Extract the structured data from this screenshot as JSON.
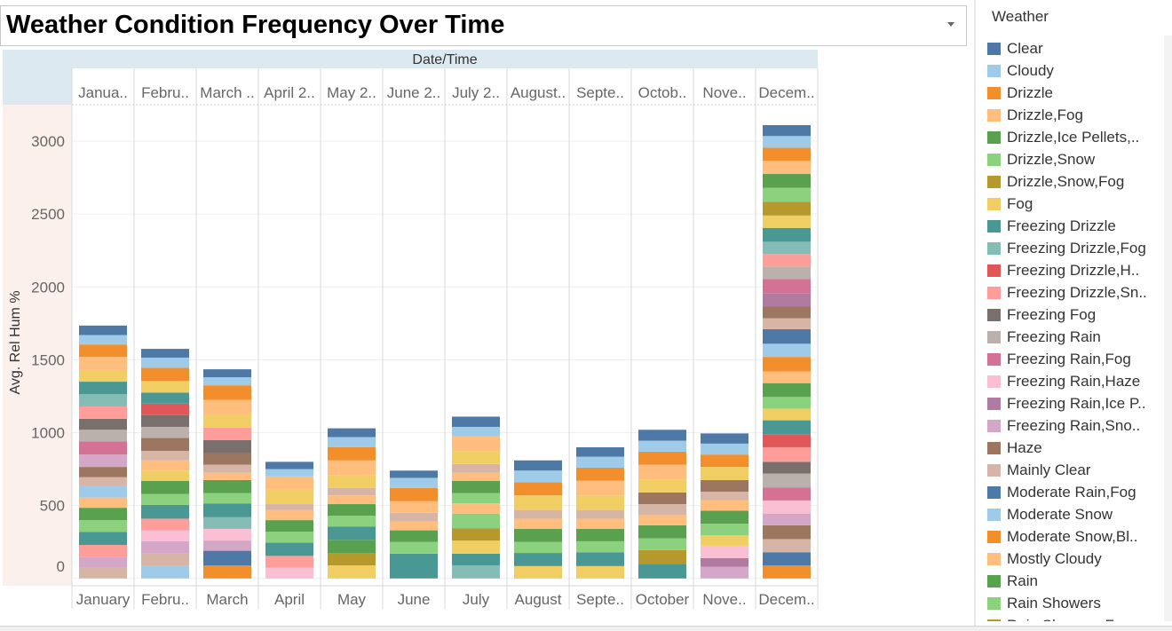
{
  "title": "Weather Condition Frequency Over Time",
  "legend": {
    "title": "Weather",
    "items": [
      {
        "label": "Clear",
        "color": "#4e79a7"
      },
      {
        "label": "Cloudy",
        "color": "#a0cbe8"
      },
      {
        "label": "Drizzle",
        "color": "#f28e2b"
      },
      {
        "label": "Drizzle,Fog",
        "color": "#ffbe7d"
      },
      {
        "label": "Drizzle,Ice Pellets,..",
        "color": "#59a14f"
      },
      {
        "label": "Drizzle,Snow",
        "color": "#8cd17d"
      },
      {
        "label": "Drizzle,Snow,Fog",
        "color": "#b6992d"
      },
      {
        "label": "Fog",
        "color": "#f1ce63"
      },
      {
        "label": "Freezing Drizzle",
        "color": "#499894"
      },
      {
        "label": "Freezing Drizzle,Fog",
        "color": "#86bcb6"
      },
      {
        "label": "Freezing Drizzle,H..",
        "color": "#e15759"
      },
      {
        "label": "Freezing Drizzle,Sn..",
        "color": "#ff9d9a"
      },
      {
        "label": "Freezing Fog",
        "color": "#79706e"
      },
      {
        "label": "Freezing Rain",
        "color": "#bab0ac"
      },
      {
        "label": "Freezing Rain,Fog",
        "color": "#d37295"
      },
      {
        "label": "Freezing Rain,Haze",
        "color": "#fabfd2"
      },
      {
        "label": "Freezing Rain,Ice P..",
        "color": "#b07aa1"
      },
      {
        "label": "Freezing Rain,Sno..",
        "color": "#d4a6c8"
      },
      {
        "label": "Haze",
        "color": "#9d7660"
      },
      {
        "label": "Mainly Clear",
        "color": "#d7b5a6"
      },
      {
        "label": "Moderate Rain,Fog",
        "color": "#4e79a7"
      },
      {
        "label": "Moderate Snow",
        "color": "#a0cbe8"
      },
      {
        "label": "Moderate Snow,Bl..",
        "color": "#f28e2b"
      },
      {
        "label": "Mostly Cloudy",
        "color": "#ffbe7d"
      },
      {
        "label": "Rain",
        "color": "#59a14f"
      },
      {
        "label": "Rain Showers",
        "color": "#8cd17d"
      },
      {
        "label": "Rain Showers,F..",
        "color": "#b6992d"
      }
    ]
  },
  "chart_data": {
    "type": "bar",
    "stacked": true,
    "title": "Weather Condition Frequency Over Time",
    "xlabel": "Date/Time",
    "ylabel": "Avg. Rel Hum %",
    "ylim": [
      -50,
      3250
    ],
    "yticks": [
      0,
      500,
      1000,
      1500,
      2000,
      2500,
      3000
    ],
    "header_labels": [
      "Janua..",
      "Febru..",
      "March ..",
      "April 2..",
      "May 2..",
      "June 2..",
      "July 2..",
      "August..",
      "Septe..",
      "Octob..",
      "Nove..",
      "Decem.."
    ],
    "categories": [
      "January",
      "Febru..",
      "March",
      "April",
      "May",
      "June",
      "July",
      "August",
      "Septe..",
      "October",
      "Nove..",
      "Decem.."
    ],
    "segments": [
      [
        {
          "c": "#d7b5a6",
          "v": 75
        },
        {
          "c": "#d4a6c8",
          "v": 75
        },
        {
          "c": "#ff9d9a",
          "v": 80
        },
        {
          "c": "#499894",
          "v": 90
        },
        {
          "c": "#8cd17d",
          "v": 80
        },
        {
          "c": "#59a14f",
          "v": 85
        },
        {
          "c": "#ffbe7d",
          "v": 70
        },
        {
          "c": "#a0cbe8",
          "v": 80
        },
        {
          "c": "#d7b5a6",
          "v": 60
        },
        {
          "c": "#9d7660",
          "v": 70
        },
        {
          "c": "#d4a6c8",
          "v": 85
        },
        {
          "c": "#d37295",
          "v": 90
        },
        {
          "c": "#bab0ac",
          "v": 80
        },
        {
          "c": "#79706e",
          "v": 75
        },
        {
          "c": "#ff9d9a",
          "v": 85
        },
        {
          "c": "#86bcb6",
          "v": 85
        },
        {
          "c": "#499894",
          "v": 85
        },
        {
          "c": "#f1ce63",
          "v": 80
        },
        {
          "c": "#ffbe7d",
          "v": 90
        },
        {
          "c": "#f28e2b",
          "v": 85
        },
        {
          "c": "#a0cbe8",
          "v": 65
        },
        {
          "c": "#4e79a7",
          "v": 65
        }
      ],
      [
        {
          "c": "#a0cbe8",
          "v": 85
        },
        {
          "c": "#d7b5a6",
          "v": 90
        },
        {
          "c": "#d4a6c8",
          "v": 80
        },
        {
          "c": "#fabfd2",
          "v": 75
        },
        {
          "c": "#ff9d9a",
          "v": 80
        },
        {
          "c": "#499894",
          "v": 95
        },
        {
          "c": "#8cd17d",
          "v": 75
        },
        {
          "c": "#59a14f",
          "v": 90
        },
        {
          "c": "#f1ce63",
          "v": 70
        },
        {
          "c": "#ffbe7d",
          "v": 70
        },
        {
          "c": "#d7b5a6",
          "v": 65
        },
        {
          "c": "#9d7660",
          "v": 90
        },
        {
          "c": "#bab0ac",
          "v": 75
        },
        {
          "c": "#79706e",
          "v": 80
        },
        {
          "c": "#e15759",
          "v": 80
        },
        {
          "c": "#499894",
          "v": 75
        },
        {
          "c": "#f1ce63",
          "v": 80
        },
        {
          "c": "#f28e2b",
          "v": 90
        },
        {
          "c": "#a0cbe8",
          "v": 70
        },
        {
          "c": "#4e79a7",
          "v": 60
        }
      ],
      [
        {
          "c": "#f28e2b",
          "v": 90
        },
        {
          "c": "#4e79a7",
          "v": 100
        },
        {
          "c": "#d4a6c8",
          "v": 70
        },
        {
          "c": "#fabfd2",
          "v": 80
        },
        {
          "c": "#86bcb6",
          "v": 80
        },
        {
          "c": "#499894",
          "v": 95
        },
        {
          "c": "#8cd17d",
          "v": 70
        },
        {
          "c": "#59a14f",
          "v": 90
        },
        {
          "c": "#ffbe7d",
          "v": 50
        },
        {
          "c": "#d7b5a6",
          "v": 55
        },
        {
          "c": "#9d7660",
          "v": 80
        },
        {
          "c": "#79706e",
          "v": 90
        },
        {
          "c": "#ff9d9a",
          "v": 85
        },
        {
          "c": "#f1ce63",
          "v": 90
        },
        {
          "c": "#ffbe7d",
          "v": 100
        },
        {
          "c": "#f28e2b",
          "v": 100
        },
        {
          "c": "#a0cbe8",
          "v": 55
        },
        {
          "c": "#4e79a7",
          "v": 55
        }
      ],
      [
        {
          "c": "#fabfd2",
          "v": 75
        },
        {
          "c": "#ff9d9a",
          "v": 80
        },
        {
          "c": "#499894",
          "v": 90
        },
        {
          "c": "#8cd17d",
          "v": 75
        },
        {
          "c": "#59a14f",
          "v": 80
        },
        {
          "c": "#ffbe7d",
          "v": 70
        },
        {
          "c": "#d7b5a6",
          "v": 40
        },
        {
          "c": "#f1ce63",
          "v": 100
        },
        {
          "c": "#ffbe7d",
          "v": 90
        },
        {
          "c": "#a0cbe8",
          "v": 50
        },
        {
          "c": "#4e79a7",
          "v": 50
        }
      ],
      [
        {
          "c": "#f1ce63",
          "v": 90
        },
        {
          "c": "#b6992d",
          "v": 85
        },
        {
          "c": "#59a14f",
          "v": 90
        },
        {
          "c": "#499894",
          "v": 90
        },
        {
          "c": "#8cd17d",
          "v": 75
        },
        {
          "c": "#59a14f",
          "v": 80
        },
        {
          "c": "#ffbe7d",
          "v": 60
        },
        {
          "c": "#d7b5a6",
          "v": 50
        },
        {
          "c": "#f1ce63",
          "v": 90
        },
        {
          "c": "#ffbe7d",
          "v": 100
        },
        {
          "c": "#f28e2b",
          "v": 90
        },
        {
          "c": "#a0cbe8",
          "v": 70
        },
        {
          "c": "#4e79a7",
          "v": 60
        }
      ],
      [
        {
          "c": "#499894",
          "v": 170
        },
        {
          "c": "#8cd17d",
          "v": 80
        },
        {
          "c": "#59a14f",
          "v": 80
        },
        {
          "c": "#ffbe7d",
          "v": 60
        },
        {
          "c": "#d7b5a6",
          "v": 60
        },
        {
          "c": "#ffbe7d",
          "v": 80
        },
        {
          "c": "#f28e2b",
          "v": 90
        },
        {
          "c": "#a0cbe8",
          "v": 70
        },
        {
          "c": "#4e79a7",
          "v": 50
        }
      ],
      [
        {
          "c": "#86bcb6",
          "v": 90
        },
        {
          "c": "#499894",
          "v": 80
        },
        {
          "c": "#f1ce63",
          "v": 90
        },
        {
          "c": "#b6992d",
          "v": 85
        },
        {
          "c": "#8cd17d",
          "v": 100
        },
        {
          "c": "#ffbe7d",
          "v": 70
        },
        {
          "c": "#8cd17d",
          "v": 70
        },
        {
          "c": "#59a14f",
          "v": 85
        },
        {
          "c": "#ffbe7d",
          "v": 55
        },
        {
          "c": "#d7b5a6",
          "v": 60
        },
        {
          "c": "#f1ce63",
          "v": 90
        },
        {
          "c": "#ffbe7d",
          "v": 100
        },
        {
          "c": "#a0cbe8",
          "v": 65
        },
        {
          "c": "#4e79a7",
          "v": 70
        }
      ],
      [
        {
          "c": "#f1ce63",
          "v": 85
        },
        {
          "c": "#499894",
          "v": 90
        },
        {
          "c": "#8cd17d",
          "v": 75
        },
        {
          "c": "#59a14f",
          "v": 90
        },
        {
          "c": "#ffbe7d",
          "v": 70
        },
        {
          "c": "#d7b5a6",
          "v": 60
        },
        {
          "c": "#f1ce63",
          "v": 100
        },
        {
          "c": "#f28e2b",
          "v": 90
        },
        {
          "c": "#a0cbe8",
          "v": 80
        },
        {
          "c": "#4e79a7",
          "v": 70
        }
      ],
      [
        {
          "c": "#f1ce63",
          "v": 85
        },
        {
          "c": "#499894",
          "v": 95
        },
        {
          "c": "#8cd17d",
          "v": 75
        },
        {
          "c": "#59a14f",
          "v": 85
        },
        {
          "c": "#ffbe7d",
          "v": 70
        },
        {
          "c": "#d7b5a6",
          "v": 60
        },
        {
          "c": "#f1ce63",
          "v": 100
        },
        {
          "c": "#ffbe7d",
          "v": 100
        },
        {
          "c": "#f28e2b",
          "v": 90
        },
        {
          "c": "#a0cbe8",
          "v": 75
        },
        {
          "c": "#4e79a7",
          "v": 65
        }
      ],
      [
        {
          "c": "#499894",
          "v": 100
        },
        {
          "c": "#b6992d",
          "v": 95
        },
        {
          "c": "#8cd17d",
          "v": 80
        },
        {
          "c": "#59a14f",
          "v": 90
        },
        {
          "c": "#ffbe7d",
          "v": 70
        },
        {
          "c": "#d7b5a6",
          "v": 75
        },
        {
          "c": "#9d7660",
          "v": 80
        },
        {
          "c": "#f1ce63",
          "v": 90
        },
        {
          "c": "#ffbe7d",
          "v": 100
        },
        {
          "c": "#f28e2b",
          "v": 90
        },
        {
          "c": "#a0cbe8",
          "v": 75
        },
        {
          "c": "#4e79a7",
          "v": 75
        }
      ],
      [
        {
          "c": "#d4a6c8",
          "v": 80
        },
        {
          "c": "#b07aa1",
          "v": 60
        },
        {
          "c": "#fabfd2",
          "v": 85
        },
        {
          "c": "#f1ce63",
          "v": 70
        },
        {
          "c": "#8cd17d",
          "v": 80
        },
        {
          "c": "#59a14f",
          "v": 90
        },
        {
          "c": "#ffbe7d",
          "v": 70
        },
        {
          "c": "#d7b5a6",
          "v": 60
        },
        {
          "c": "#9d7660",
          "v": 80
        },
        {
          "c": "#f1ce63",
          "v": 90
        },
        {
          "c": "#f28e2b",
          "v": 85
        },
        {
          "c": "#a0cbe8",
          "v": 75
        },
        {
          "c": "#4e79a7",
          "v": 70
        }
      ],
      [
        {
          "c": "#f28e2b",
          "v": 90
        },
        {
          "c": "#4e79a7",
          "v": 90
        },
        {
          "c": "#d7b5a6",
          "v": 90
        },
        {
          "c": "#9d7660",
          "v": 95
        },
        {
          "c": "#d4a6c8",
          "v": 80
        },
        {
          "c": "#fabfd2",
          "v": 90
        },
        {
          "c": "#d37295",
          "v": 90
        },
        {
          "c": "#bab0ac",
          "v": 95
        },
        {
          "c": "#79706e",
          "v": 80
        },
        {
          "c": "#ff9d9a",
          "v": 100
        },
        {
          "c": "#e15759",
          "v": 90
        },
        {
          "c": "#499894",
          "v": 95
        },
        {
          "c": "#f1ce63",
          "v": 80
        },
        {
          "c": "#8cd17d",
          "v": 80
        },
        {
          "c": "#59a14f",
          "v": 95
        },
        {
          "c": "#ffbe7d",
          "v": 80
        },
        {
          "c": "#f28e2b",
          "v": 100
        },
        {
          "c": "#a0cbe8",
          "v": 90
        },
        {
          "c": "#4e79a7",
          "v": 100
        },
        {
          "c": "#d7b5a6",
          "v": 75
        },
        {
          "c": "#9d7660",
          "v": 80
        },
        {
          "c": "#b07aa1",
          "v": 90
        },
        {
          "c": "#d37295",
          "v": 100
        },
        {
          "c": "#bab0ac",
          "v": 85
        },
        {
          "c": "#ff9d9a",
          "v": 85
        },
        {
          "c": "#86bcb6",
          "v": 85
        },
        {
          "c": "#499894",
          "v": 95
        },
        {
          "c": "#f1ce63",
          "v": 85
        },
        {
          "c": "#b6992d",
          "v": 95
        },
        {
          "c": "#8cd17d",
          "v": 95
        },
        {
          "c": "#59a14f",
          "v": 95
        },
        {
          "c": "#ffbe7d",
          "v": 90
        },
        {
          "c": "#f28e2b",
          "v": 90
        },
        {
          "c": "#a0cbe8",
          "v": 80
        },
        {
          "c": "#4e79a7",
          "v": 75
        }
      ]
    ]
  }
}
